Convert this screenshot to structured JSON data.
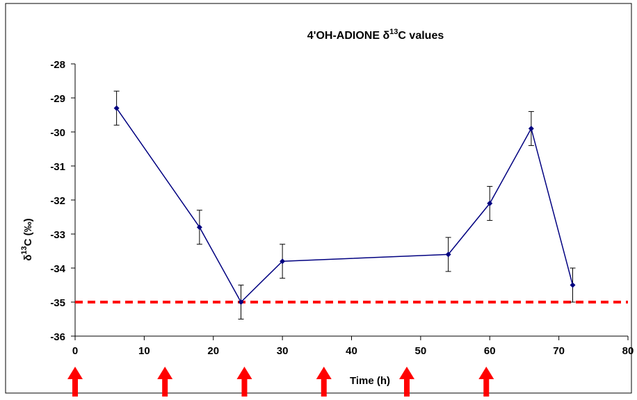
{
  "chart_data": {
    "type": "line",
    "title_main": "4'OH-ADIONE δ",
    "title_sup": "13",
    "title_tail": "C values",
    "xlabel": "Time (h)",
    "ylabel_main": "δ",
    "ylabel_sup": "13",
    "ylabel_tail": "C (‰)",
    "xlim": [
      0,
      80
    ],
    "ylim": [
      -36,
      -28
    ],
    "x_ticks": [
      0,
      10,
      20,
      30,
      40,
      50,
      60,
      70,
      80
    ],
    "y_ticks": [
      -28,
      -29,
      -30,
      -31,
      -32,
      -33,
      -34,
      -35,
      -36
    ],
    "grid": false,
    "series": [
      {
        "x": [
          6,
          18,
          24,
          30,
          54,
          60,
          66,
          72
        ],
        "y": [
          -29.3,
          -32.8,
          -35.0,
          -33.8,
          -33.6,
          -32.1,
          -29.9,
          -34.5
        ],
        "error": [
          0.5,
          0.5,
          0.5,
          0.5,
          0.5,
          0.5,
          0.5,
          0.5
        ]
      }
    ],
    "reference_line": {
      "y": -35.0
    },
    "arrows_x": [
      0,
      13,
      24.5,
      36,
      48,
      59.5
    ],
    "colors": {
      "series": "#000080",
      "reference": "#ff0000",
      "arrow": "#ff0000",
      "axis": "#000000"
    }
  }
}
